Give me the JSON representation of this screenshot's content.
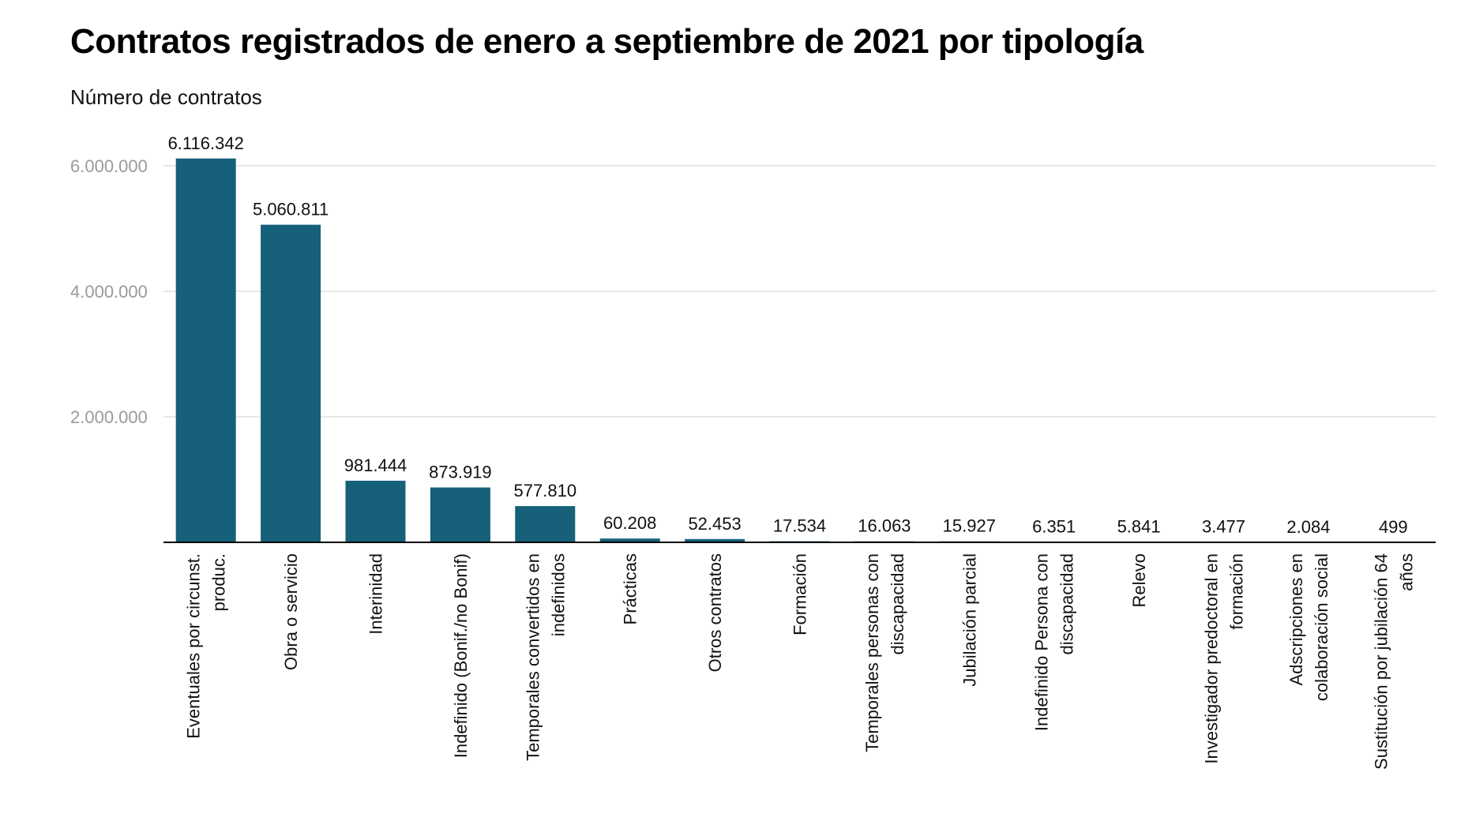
{
  "title": "Contratos registrados de enero a septiembre de 2021 por tipología",
  "subtitle": "Número de contratos",
  "colors": {
    "bar": "#17607a"
  },
  "chart_data": {
    "type": "bar",
    "title": "Contratos registrados de enero a septiembre de 2021 por tipología",
    "ylabel": "Número de contratos",
    "xlabel": "",
    "ylim": [
      0,
      6000000
    ],
    "yticks": [
      2000000,
      4000000,
      6000000
    ],
    "ytick_labels": [
      "2.000.000",
      "4.000.000",
      "6.000.000"
    ],
    "grid": true,
    "categories": [
      [
        "Eventuales por circunst.",
        "produc."
      ],
      [
        "Obra o servicio"
      ],
      [
        "Interinidad"
      ],
      [
        "Indefinido (Bonif./no Bonif)"
      ],
      [
        "Temporales convertidos en",
        "indefinidos"
      ],
      [
        "Prácticas"
      ],
      [
        "Otros contratos"
      ],
      [
        "Formación"
      ],
      [
        "Temporales personas con",
        "discapacidad"
      ],
      [
        "Jubilación parcial"
      ],
      [
        "Indefinido Persona con",
        "discapacidad"
      ],
      [
        "Relevo"
      ],
      [
        "Investigador predoctoral en",
        "formación"
      ],
      [
        "Adscripciones en",
        "colaboración social"
      ],
      [
        "Sustitución por jubilación 64",
        "años"
      ]
    ],
    "values": [
      6116342,
      5060811,
      981444,
      873919,
      577810,
      60208,
      52453,
      17534,
      16063,
      15927,
      6351,
      5841,
      3477,
      2084,
      499
    ],
    "value_labels": [
      "6.116.342",
      "5.060.811",
      "981.444",
      "873.919",
      "577.810",
      "60.208",
      "52.453",
      "17.534",
      "16.063",
      "15.927",
      "6.351",
      "5.841",
      "3.477",
      "2.084",
      "499"
    ]
  }
}
